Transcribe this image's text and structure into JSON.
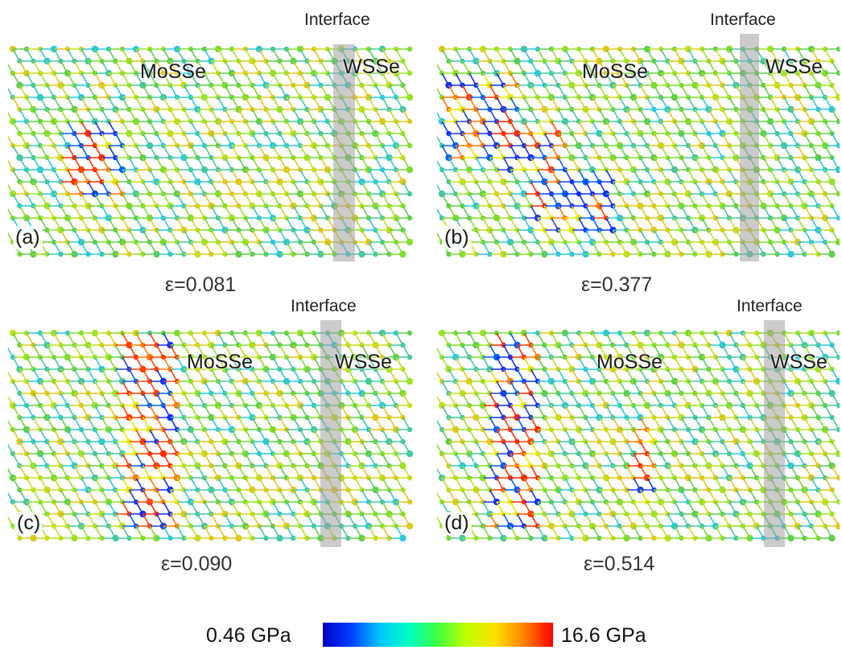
{
  "panels": [
    {
      "tag": "(a)",
      "material_left": "MoSSe",
      "material_right": "WSSe",
      "interface_label": "Interface",
      "strain": "ε=0.081"
    },
    {
      "tag": "(b)",
      "material_left": "MoSSe",
      "material_right": "WSSe",
      "interface_label": "Interface",
      "strain": "ε=0.377"
    },
    {
      "tag": "(c)",
      "material_left": "MoSSe",
      "material_right": "WSSe",
      "interface_label": "Interface",
      "strain": "ε=0.090"
    },
    {
      "tag": "(d)",
      "material_left": "MoSSe",
      "material_right": "WSSe",
      "interface_label": "Interface",
      "strain": "ε=0.514"
    }
  ],
  "colorbar": {
    "min_label": "0.46 GPa",
    "max_label": "16.6 GPa",
    "colors": [
      "#0000c8",
      "#0040ff",
      "#00c8ff",
      "#00ffc0",
      "#40ff40",
      "#c0ff00",
      "#ffe000",
      "#ff8000",
      "#ff0000"
    ]
  }
}
